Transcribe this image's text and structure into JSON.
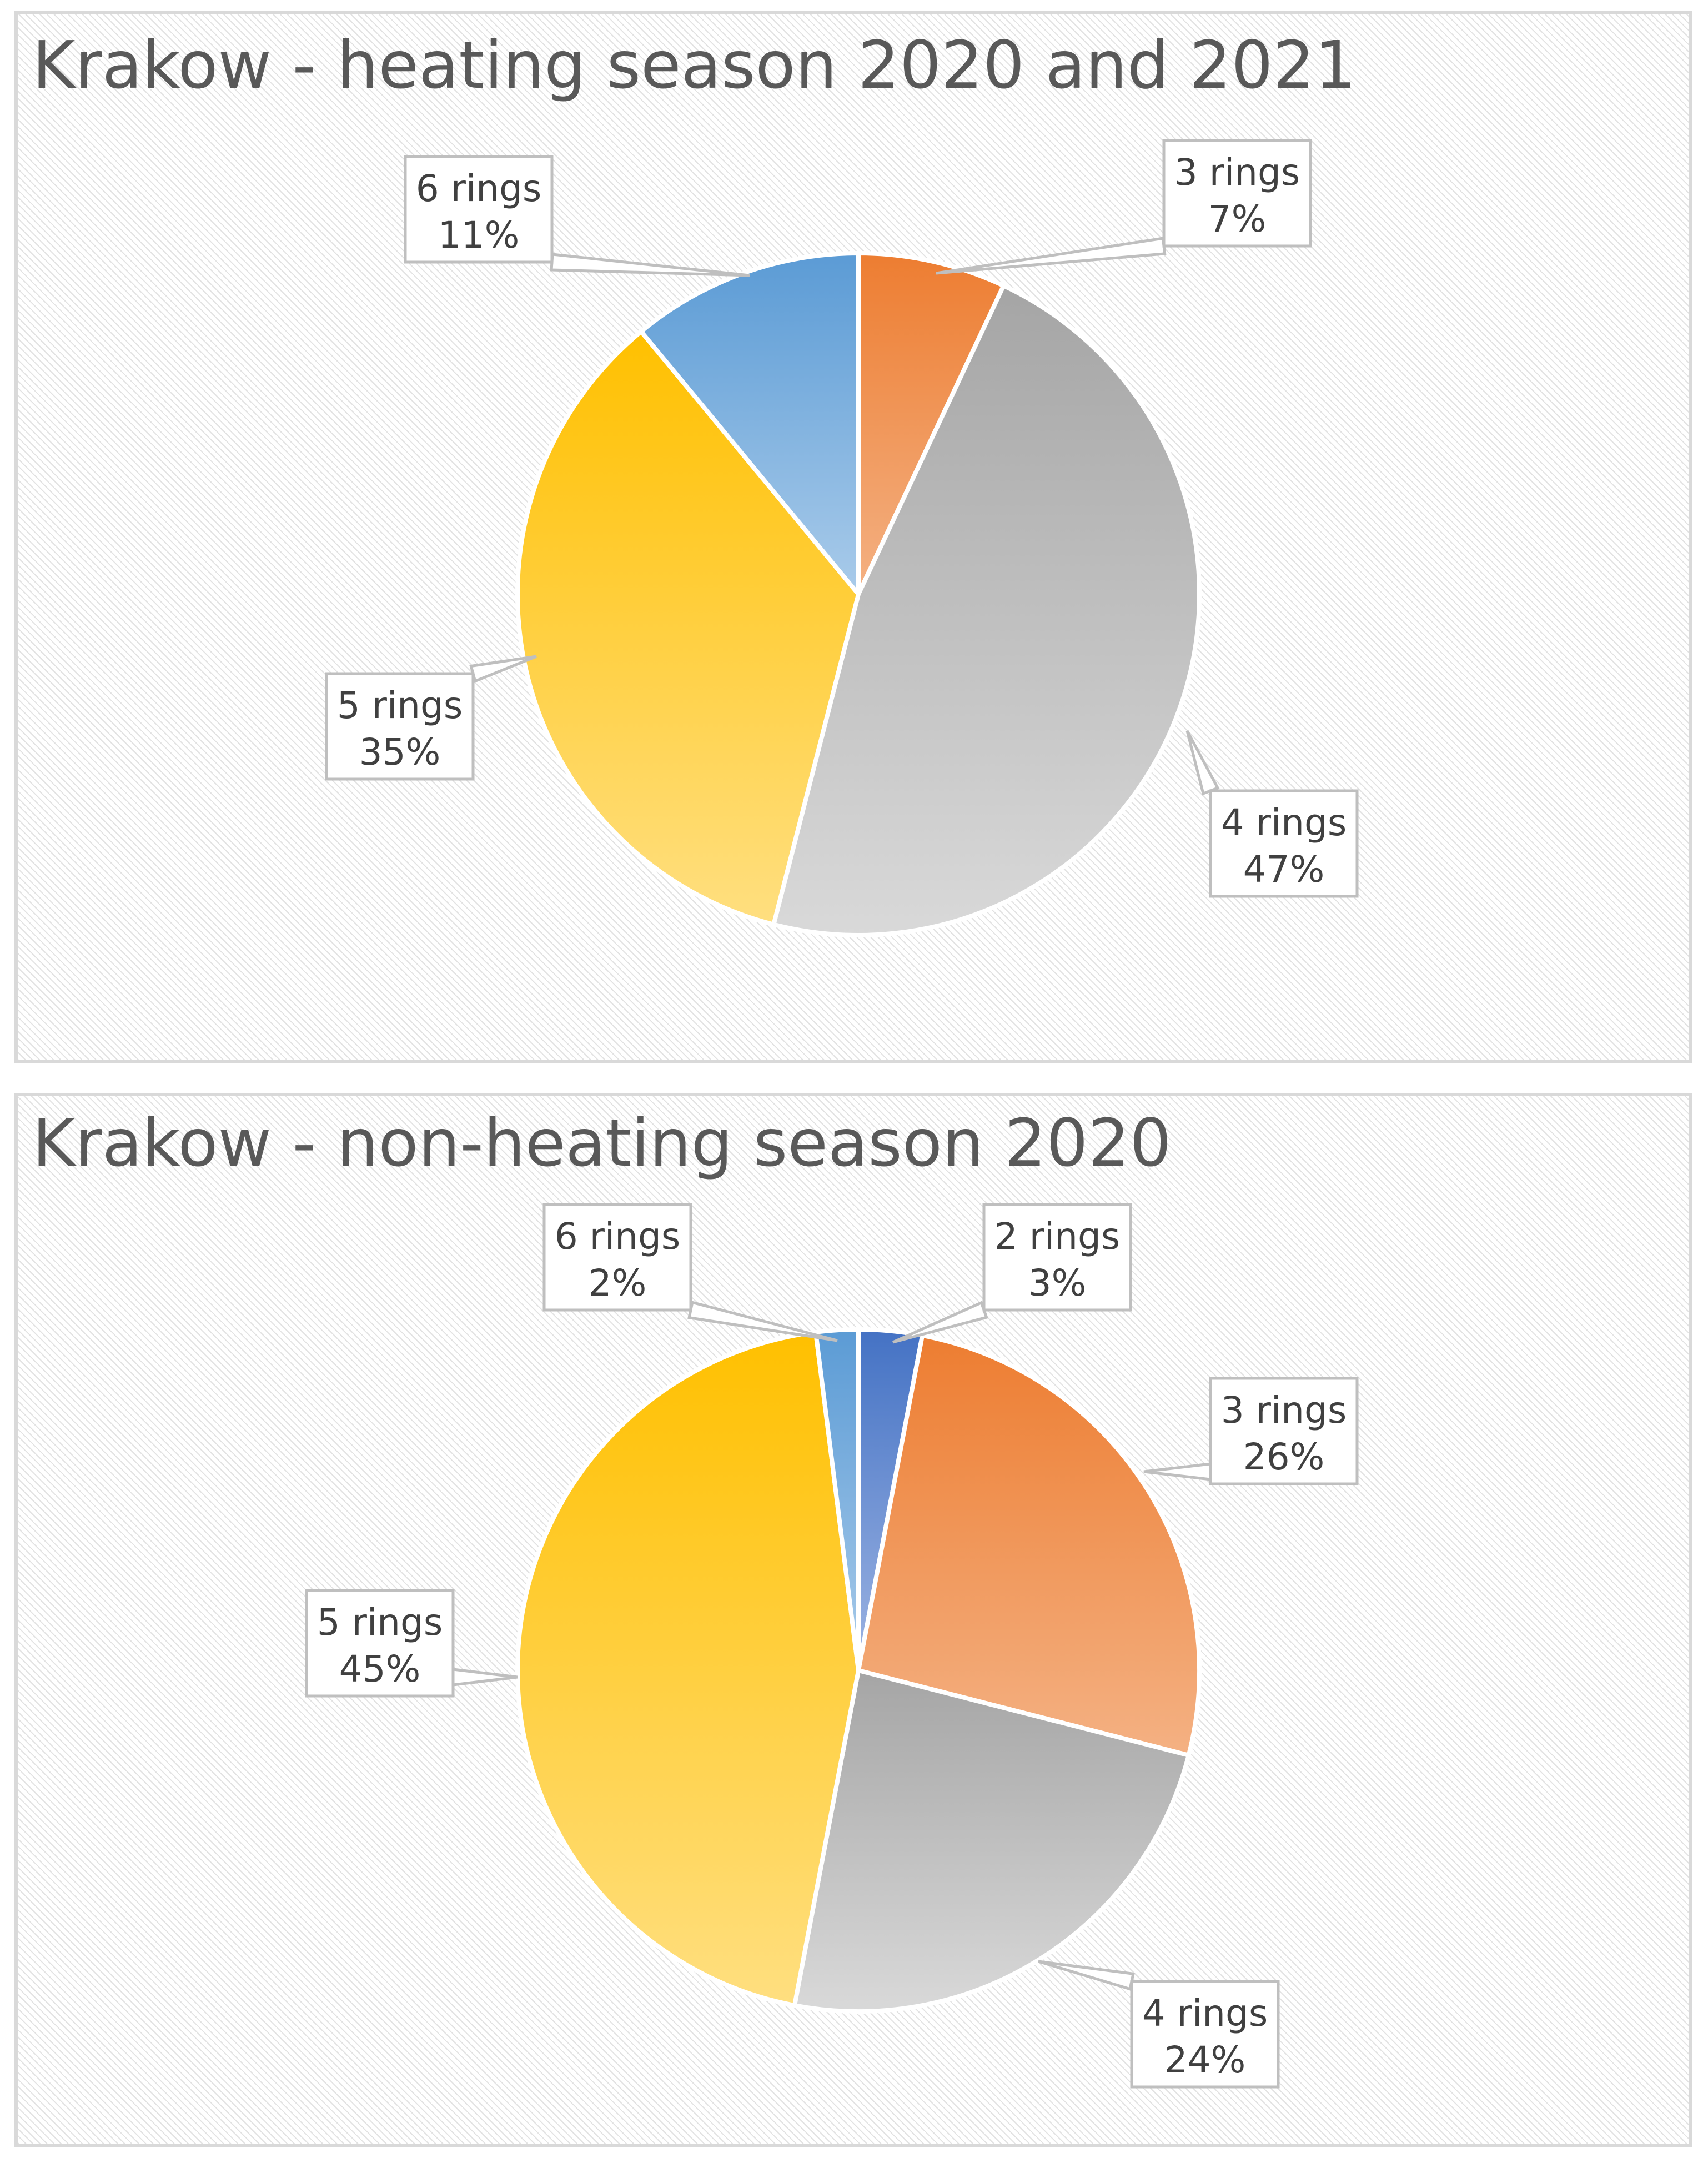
{
  "chart_data": [
    {
      "type": "pie",
      "title": "Krakow - heating season 2020 and 2021",
      "categories": [
        "3 rings",
        "4 rings",
        "5 rings",
        "6 rings"
      ],
      "values": [
        7,
        47,
        35,
        11
      ],
      "value_labels": [
        "7%",
        "47%",
        "35%",
        "11%"
      ],
      "colors": [
        "#ED7D31",
        "#A5A5A5",
        "#FFC000",
        "#5B9BD5"
      ],
      "colors_light": [
        "#F4B183",
        "#D9D9D9",
        "#FFDF80",
        "#A9CBEA"
      ],
      "start_angle": 0,
      "direction": "clockwise",
      "legend": "none",
      "grid": false
    },
    {
      "type": "pie",
      "title": "Krakow - non-heating season 2020",
      "categories": [
        "2 rings",
        "3 rings",
        "4 rings",
        "5 rings",
        "6 rings"
      ],
      "values": [
        3,
        26,
        24,
        45,
        2
      ],
      "value_labels": [
        "3%",
        "26%",
        "24%",
        "45%",
        "2%"
      ],
      "colors": [
        "#4472C4",
        "#ED7D31",
        "#A5A5A5",
        "#FFC000",
        "#5B9BD5"
      ],
      "colors_light": [
        "#9DB4E3",
        "#F4B183",
        "#D9D9D9",
        "#FFDF80",
        "#A9CBEA"
      ],
      "start_angle": 0,
      "direction": "clockwise",
      "legend": "none",
      "grid": false
    }
  ]
}
